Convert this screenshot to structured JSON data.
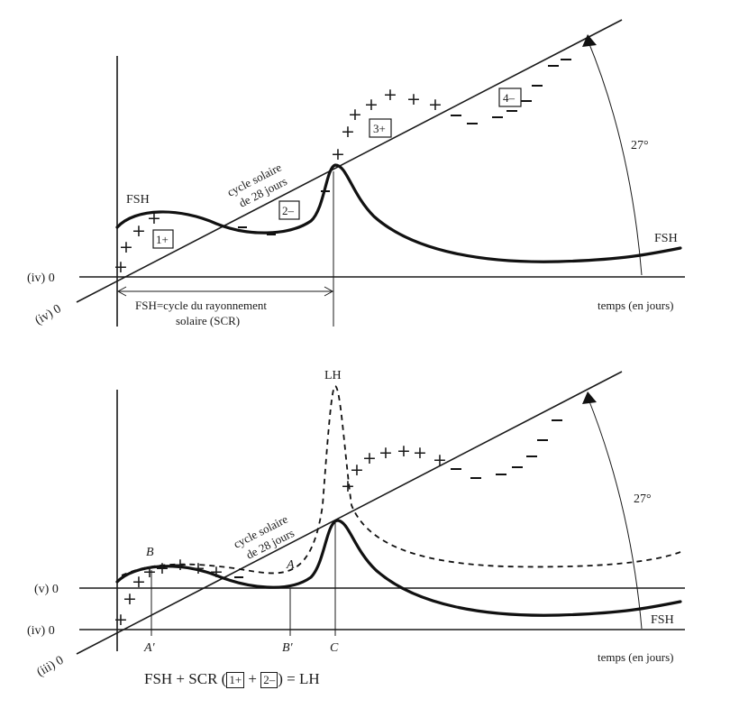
{
  "top": {
    "axis_iv_label": "(iv) 0",
    "axis_iv_slant_label": "(iv) 0",
    "fsh_left": "FSH",
    "fsh_right": "FSH",
    "cycle_line1": "cycle solaire",
    "cycle_line2": "de 28 jours",
    "box1": "1+",
    "box2": "2–",
    "box3": "3+",
    "box4": "4–",
    "angle": "27°",
    "scr_line1": "FSH=cycle du rayonnement",
    "scr_line2": "solaire (SCR)",
    "time_label": "temps (en jours)"
  },
  "bottom": {
    "axis_v_label": "(v) 0",
    "axis_iv_label": "(iv) 0",
    "axis_iii_label": "(iii) 0",
    "lh": "LH",
    "fsh_right": "FSH",
    "cycle_line1": "cycle solaire",
    "cycle_line2": "de 28 jours",
    "angle": "27°",
    "point_b": "B",
    "point_a": "A",
    "point_a_prime": "A'",
    "point_b_prime": "B'",
    "point_c": "C",
    "time_label": "temps (en jours)"
  },
  "formula": {
    "prefix": "FSH + SCR (",
    "box1": "1+",
    "plus": " + ",
    "box2": "2–",
    "suffix": ") = LH"
  }
}
